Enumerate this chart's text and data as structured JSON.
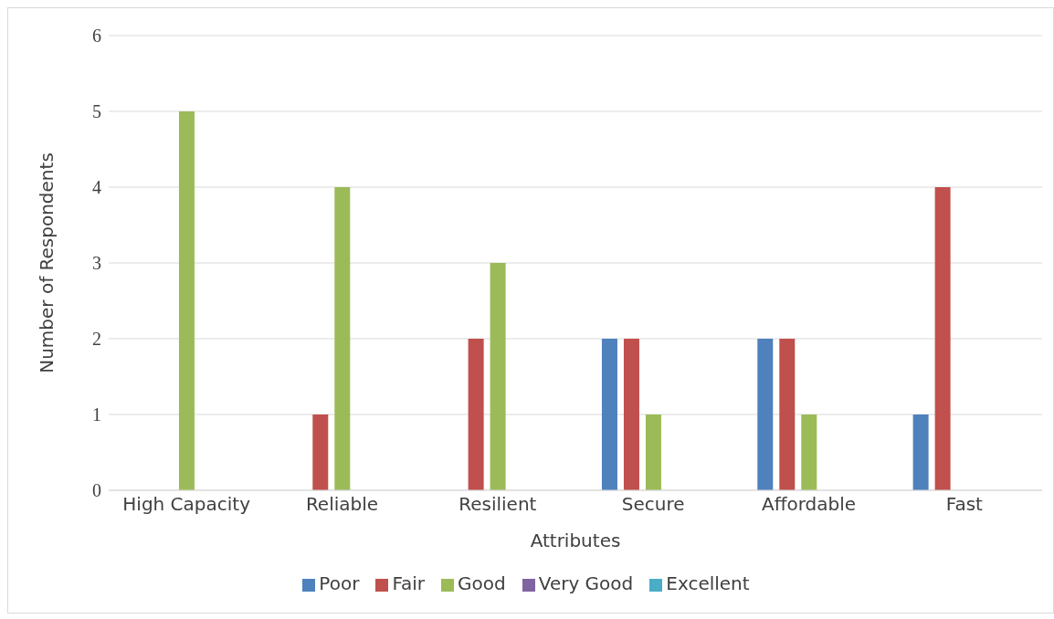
{
  "chart_data": {
    "type": "bar",
    "xlabel": "Attributes",
    "ylabel": "Number of Respondents",
    "categories": [
      "High Capacity",
      "Reliable",
      "Resilient",
      "Secure",
      "Affordable",
      "Fast"
    ],
    "series": [
      {
        "name": "Poor",
        "color": "#4f81bd",
        "values": [
          0,
          0,
          0,
          2,
          2,
          1
        ]
      },
      {
        "name": "Fair",
        "color": "#c0504d",
        "values": [
          0,
          1,
          2,
          2,
          2,
          4
        ]
      },
      {
        "name": "Good",
        "color": "#9bbb59",
        "values": [
          5,
          4,
          3,
          1,
          1,
          0
        ]
      },
      {
        "name": "Very Good",
        "color": "#8064a2",
        "values": [
          0,
          0,
          0,
          0,
          0,
          0
        ]
      },
      {
        "name": "Excellent",
        "color": "#4bacc6",
        "values": [
          0,
          0,
          0,
          0,
          0,
          0
        ]
      }
    ],
    "ylim": [
      0,
      6
    ],
    "yticks": [
      0,
      1,
      2,
      3,
      4,
      5,
      6
    ],
    "grid": "y",
    "legend": "bottom"
  }
}
